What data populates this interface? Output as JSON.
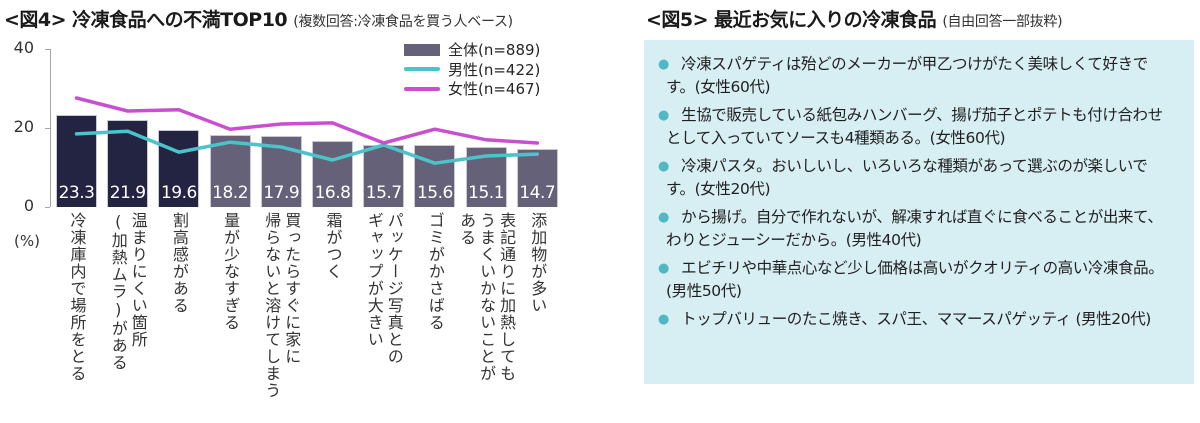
{
  "fig4": {
    "title": "<図4> 冷凍食品への不満TOP10",
    "subtitle": "(複数回答:冷凍食品を買う人ベース)"
  },
  "fig5": {
    "title": "<図5> 最近お気に入りの冷凍食品",
    "subtitle": "(自由回答一部抜粋)",
    "comments": [
      {
        "text": "　冷凍スパゲティは殆どのメーカーが甲乙つけがたく美味しくて好きです。(女性60代)"
      },
      {
        "text": "　生協で販売している紙包みハンバーグ、揚げ茄子とポテトも付け合わせとして入っていてソースも4種類ある。(女性60代)"
      },
      {
        "text": "　冷凍パスタ。おいしいし、いろいろな種類があって選ぶのが楽しいです。(女性20代)"
      },
      {
        "text": "　から揚げ。自分で作れないが、解凍すれば直ぐに食べることが出来て、わりとジューシーだから。(男性40代)"
      },
      {
        "text": "　エビチリや中華点心など少し価格は高いがクオリティの高い冷凍食品。(男性50代)"
      },
      {
        "text": "　トップバリューのたこ焼き、スパ王、ママースパゲッティ (男性20代)"
      }
    ],
    "bullet_icon": "dot-bullet-icon",
    "panel_color": "#d7eef2"
  },
  "chart_data": {
    "type": "bar",
    "title": "<図4> 冷凍食品への不満TOP10",
    "subtitle": "(複数回答:冷凍食品を買う人ベース)",
    "xlabel": "",
    "ylabel": "(%)",
    "ylim": [
      0,
      40
    ],
    "yticks": [
      0,
      20,
      40
    ],
    "grid": false,
    "legend_position": "top-right",
    "categories": [
      "冷凍庫内で場所をとる",
      "温まりにくい箇所(加熱ムラ)がある",
      "割高感がある",
      "量が少なすぎる",
      "買ったらすぐに家に帰らないと溶けてしまう",
      "霜がつく",
      "パッケージ写真とのギャップが大きい",
      "ゴミがかさばる",
      "表記通りに加熱してもうまくいかないことがある",
      "添加物が多い"
    ],
    "category_lines": [
      [
        "冷凍庫内で場所をとる"
      ],
      [
        "温まりにくい箇所",
        "(加熱ムラ)がある"
      ],
      [
        "割高感がある"
      ],
      [
        "量が少なすぎる"
      ],
      [
        "買ったらすぐに家に",
        "帰らないと溶けてしまう"
      ],
      [
        "霜がつく"
      ],
      [
        "パッケージ写真との",
        "ギャップが大きい"
      ],
      [
        "ゴミがかさばる"
      ],
      [
        "表記通りに加熱しても",
        "うまくいかないことが",
        "ある"
      ],
      [
        "添加物が多い"
      ]
    ],
    "series": [
      {
        "name": "全体(n=889)",
        "kind": "bar",
        "color": "#646178",
        "highlight_color": "#232342",
        "highlight_count": 3,
        "values": [
          23.3,
          21.9,
          19.6,
          18.2,
          17.9,
          16.8,
          15.7,
          15.6,
          15.1,
          14.7
        ]
      },
      {
        "name": "男性(n=422)",
        "kind": "line",
        "color": "#4cc3c9",
        "values": [
          18.5,
          19.2,
          13.9,
          16.4,
          15.2,
          11.9,
          15.7,
          11.1,
          12.9,
          13.4
        ]
      },
      {
        "name": "女性(n=467)",
        "kind": "line",
        "color": "#c94fd0",
        "values": [
          27.6,
          24.3,
          24.6,
          19.7,
          21.0,
          21.3,
          16.2,
          19.7,
          17.0,
          16.2
        ]
      }
    ]
  }
}
